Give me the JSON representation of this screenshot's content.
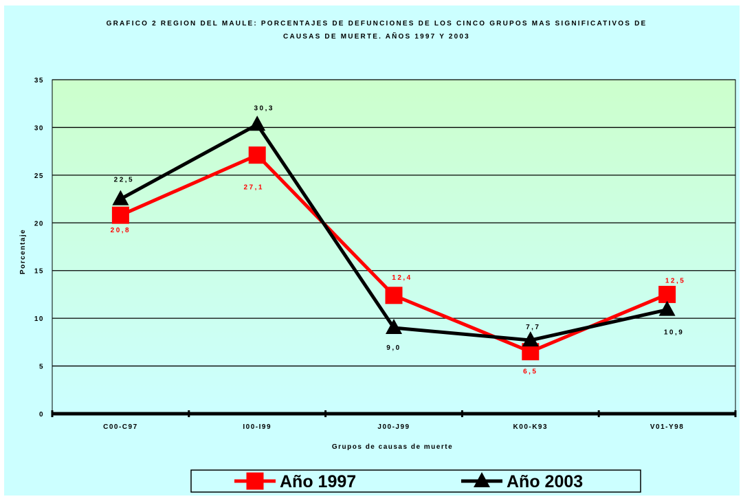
{
  "chart_data": {
    "type": "line",
    "title_lines": [
      "GRAFICO 2 REGION DEL MAULE: PORCENTAJES DE DEFUNCIONES DE LOS CINCO GRUPOS MAS SIGNIFICATIVOS DE",
      "CAUSAS DE MUERTE. AÑOS 1997 Y 2003"
    ],
    "xlabel": "Grupos de causas de muerte",
    "ylabel": "Porcentaje",
    "categories": [
      "C00-C97",
      "I00-I99",
      "J00-J99",
      "K00-K93",
      "V01-Y98"
    ],
    "ylim": [
      0,
      35
    ],
    "yticks": [
      0,
      5,
      10,
      15,
      20,
      25,
      30,
      35
    ],
    "grid": true,
    "legend_position": "bottom",
    "series": [
      {
        "name": "Año 1997",
        "values": [
          20.8,
          27.1,
          12.4,
          6.5,
          12.5
        ],
        "labels": [
          "20,8",
          "27,1",
          "12,4",
          "6,5",
          "12,5"
        ],
        "color": "#ff0000",
        "marker": "square"
      },
      {
        "name": "Año 2003",
        "values": [
          22.5,
          30.3,
          9.0,
          7.7,
          10.9
        ],
        "labels": [
          "22,5",
          "30,3",
          "9,0",
          "7,7",
          "10,9"
        ],
        "color": "#000000",
        "marker": "triangle"
      }
    ],
    "colors": {
      "background": "#ccffff",
      "plot_area_top": "#ccffcc",
      "plot_area_bottom": "#ccffff",
      "legend_background": "#ccffff"
    }
  }
}
